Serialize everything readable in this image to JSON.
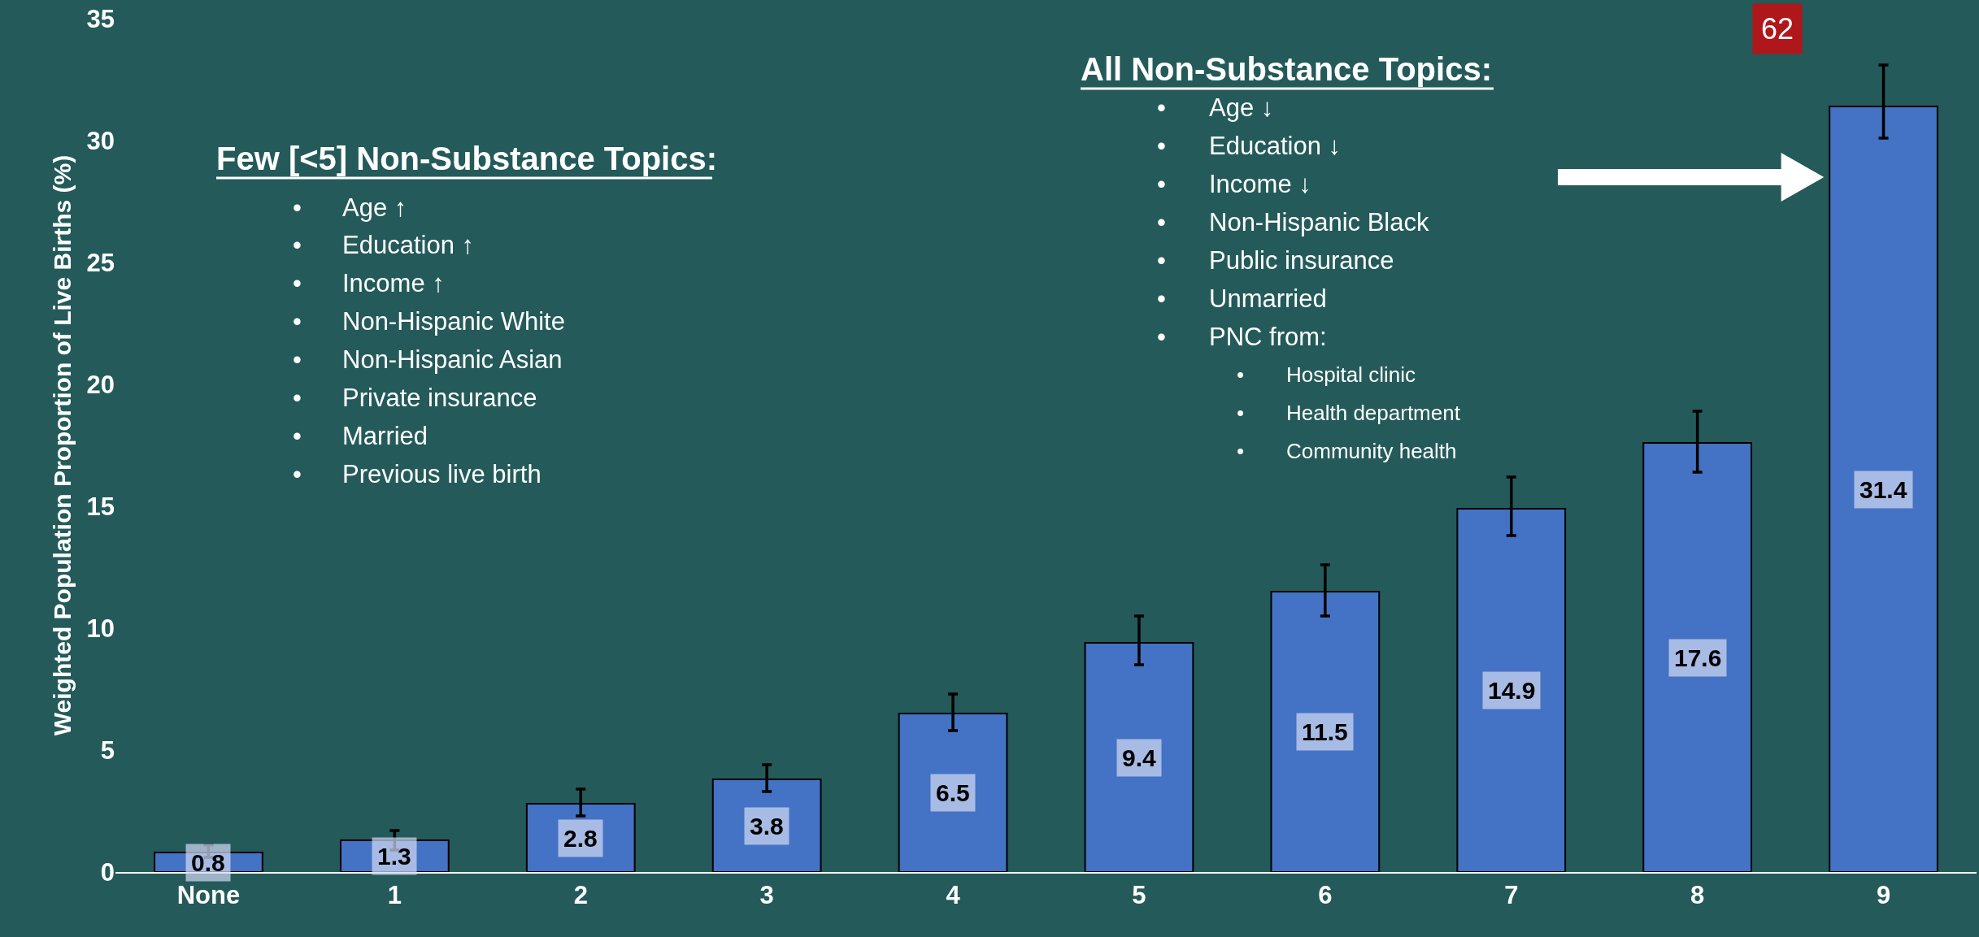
{
  "chart_data": {
    "type": "bar",
    "ylabel": "Weighted Population Proportion of Live Births (%)",
    "categories": [
      "None",
      "1",
      "2",
      "3",
      "4",
      "5",
      "6",
      "7",
      "8",
      "9"
    ],
    "values": [
      0.8,
      1.3,
      2.8,
      3.8,
      6.5,
      9.4,
      11.5,
      14.9,
      17.6,
      31.4
    ],
    "errors": [
      [
        0.6,
        1.1
      ],
      [
        0.9,
        1.7
      ],
      [
        2.3,
        3.4
      ],
      [
        3.3,
        4.4
      ],
      [
        5.8,
        7.3
      ],
      [
        8.5,
        10.5
      ],
      [
        10.5,
        12.6
      ],
      [
        13.8,
        16.2
      ],
      [
        16.4,
        18.9
      ],
      [
        30.1,
        33.1
      ]
    ],
    "color": "#4472c4",
    "data_labels": true,
    "ylim": [
      0,
      35
    ],
    "yticks": [
      0,
      5,
      10,
      15,
      20,
      25,
      30,
      35
    ],
    "annotations": [
      "Few [<5] Non-Substance Topics:\n• Age ↑\n• Education ↑\n• Income ↑\n• Non-Hispanic White\n• Non-Hispanic Asian\n• Private insurance\n• Married\n• Previous live birth",
      "All Non-Substance Topics:\n• Age ↓\n• Education ↓\n• Income ↓\n• Non-Hispanic Black\n• Public insurance\n• Unmarried\n• PNC from:\n\t• Hospital clinic\n\t• Health department\n\t• Community health",
      "62"
    ]
  }
}
